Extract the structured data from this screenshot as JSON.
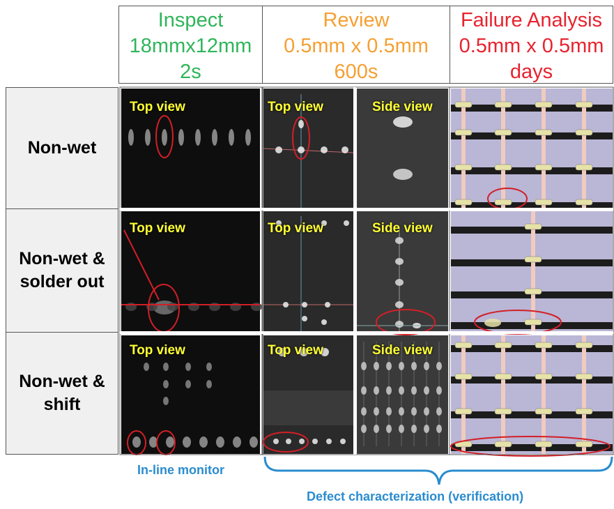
{
  "columns": [
    {
      "title": "Inspect",
      "size": "18mmx12mm",
      "time": "2s"
    },
    {
      "title": "Review",
      "size": "0.5mm x 0.5mm",
      "time": "600s"
    },
    {
      "title": "Failure Analysis",
      "size": "0.5mm x 0.5mm",
      "time": "days"
    }
  ],
  "rows": [
    {
      "label": "Non-wet",
      "panels": [
        "Top view",
        "Top view",
        "Side view"
      ]
    },
    {
      "label": "Non-wet & solder out",
      "panels": [
        "Top view",
        "Top view",
        "Side view"
      ]
    },
    {
      "label": "Non-wet & shift",
      "panels": [
        "Top view",
        "Top view",
        "Side view"
      ]
    }
  ],
  "footer": {
    "inspect_note": "In-line monitor",
    "review_note": "Defect characterization (verification)"
  }
}
